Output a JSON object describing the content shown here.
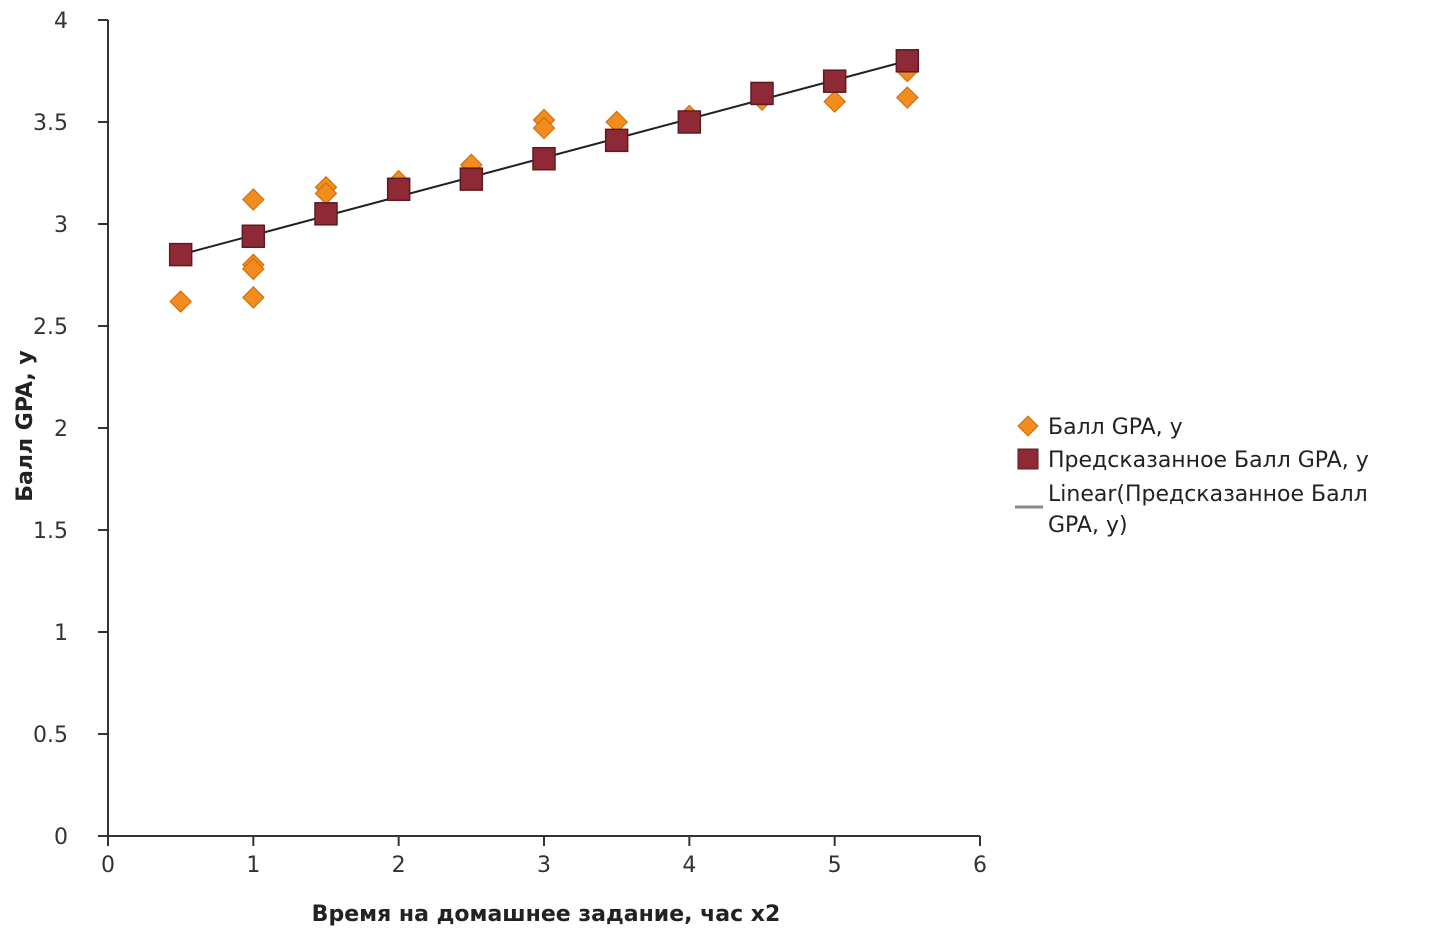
{
  "chart_data": {
    "type": "scatter",
    "xlabel": "Время на домашнее задание, час х2",
    "ylabel": "Балл GPA, y",
    "xlim": [
      0,
      6
    ],
    "ylim": [
      0,
      4
    ],
    "x_ticks": [
      0,
      1,
      2,
      3,
      4,
      5,
      6
    ],
    "y_ticks": [
      0,
      0.5,
      1,
      1.5,
      2,
      2.5,
      3,
      3.5,
      4
    ],
    "grid": false,
    "legend_position": "right",
    "series": [
      {
        "name": "Балл GPA, y",
        "marker": "diamond",
        "color": "#f28c1c",
        "points": [
          {
            "x": 0.5,
            "y": 2.62
          },
          {
            "x": 1.0,
            "y": 3.12
          },
          {
            "x": 1.0,
            "y": 2.8
          },
          {
            "x": 1.0,
            "y": 2.78
          },
          {
            "x": 1.0,
            "y": 2.64
          },
          {
            "x": 1.5,
            "y": 3.18
          },
          {
            "x": 1.5,
            "y": 3.15
          },
          {
            "x": 2.0,
            "y": 3.21
          },
          {
            "x": 2.5,
            "y": 3.29
          },
          {
            "x": 3.0,
            "y": 3.51
          },
          {
            "x": 3.0,
            "y": 3.47
          },
          {
            "x": 3.5,
            "y": 3.5
          },
          {
            "x": 4.0,
            "y": 3.53
          },
          {
            "x": 4.5,
            "y": 3.61
          },
          {
            "x": 5.0,
            "y": 3.6
          },
          {
            "x": 5.5,
            "y": 3.75
          },
          {
            "x": 5.5,
            "y": 3.62
          }
        ]
      },
      {
        "name": "Предсказанное Балл GPA, y",
        "marker": "square",
        "color": "#8e2a36",
        "points": [
          {
            "x": 0.5,
            "y": 2.85
          },
          {
            "x": 1.0,
            "y": 2.94
          },
          {
            "x": 1.5,
            "y": 3.05
          },
          {
            "x": 2.0,
            "y": 3.17
          },
          {
            "x": 2.5,
            "y": 3.22
          },
          {
            "x": 3.0,
            "y": 3.32
          },
          {
            "x": 3.5,
            "y": 3.41
          },
          {
            "x": 4.0,
            "y": 3.5
          },
          {
            "x": 4.5,
            "y": 3.64
          },
          {
            "x": 5.0,
            "y": 3.7
          },
          {
            "x": 5.5,
            "y": 3.8
          }
        ]
      }
    ],
    "trendline": {
      "name": "Linear(Предсказанное Балл GPA, y)",
      "name_lines": [
        "Linear(Предсказанное Балл",
        "GPA, y)"
      ],
      "color": "#222222",
      "legend_color": "#888888",
      "x_range": [
        0.5,
        5.5
      ],
      "slope": 0.19,
      "intercept": 2.755
    }
  }
}
